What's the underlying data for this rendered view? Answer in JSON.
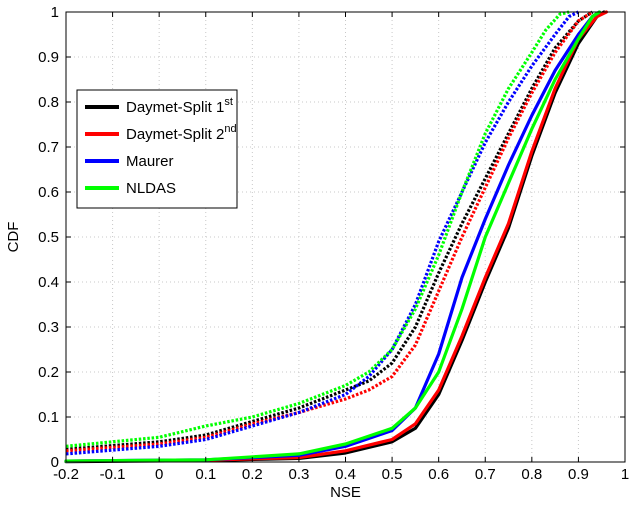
{
  "chart_data": {
    "type": "line",
    "title": "",
    "xlabel": "NSE",
    "ylabel": "CDF",
    "xlim": [
      -0.2,
      1
    ],
    "ylim": [
      0,
      1
    ],
    "xticks": [
      "-0.2",
      "-0.1",
      "0",
      "0.1",
      "0.2",
      "0.3",
      "0.4",
      "0.5",
      "0.6",
      "0.7",
      "0.8",
      "0.9",
      "1"
    ],
    "yticks": [
      "0",
      "0.1",
      "0.2",
      "0.3",
      "0.4",
      "0.5",
      "0.6",
      "0.7",
      "0.8",
      "0.9",
      "1"
    ],
    "grid": true,
    "legend_position": "upper-left",
    "legend": [
      {
        "label": "Daymet-Split 1",
        "sup": "st",
        "color": "#000000"
      },
      {
        "label": "Daymet-Split 2",
        "sup": "nd",
        "color": "#ff0000"
      },
      {
        "label": "Maurer",
        "sup": "",
        "color": "#0000ff"
      },
      {
        "label": "NLDAS",
        "sup": "",
        "color": "#00ff00"
      }
    ],
    "series": [
      {
        "group": "solid",
        "color": "#000000",
        "style": "solid",
        "points": [
          [
            -0.2,
            0.001
          ],
          [
            0.1,
            0.003
          ],
          [
            0.3,
            0.008
          ],
          [
            0.4,
            0.02
          ],
          [
            0.5,
            0.045
          ],
          [
            0.55,
            0.075
          ],
          [
            0.6,
            0.15
          ],
          [
            0.65,
            0.27
          ],
          [
            0.7,
            0.4
          ],
          [
            0.75,
            0.52
          ],
          [
            0.8,
            0.68
          ],
          [
            0.85,
            0.82
          ],
          [
            0.9,
            0.93
          ],
          [
            0.94,
            0.99
          ],
          [
            0.955,
            1.0
          ]
        ]
      },
      {
        "group": "solid",
        "color": "#ff0000",
        "style": "solid",
        "points": [
          [
            -0.2,
            0.002
          ],
          [
            0.1,
            0.004
          ],
          [
            0.3,
            0.01
          ],
          [
            0.4,
            0.025
          ],
          [
            0.5,
            0.05
          ],
          [
            0.55,
            0.085
          ],
          [
            0.6,
            0.16
          ],
          [
            0.65,
            0.28
          ],
          [
            0.7,
            0.41
          ],
          [
            0.75,
            0.53
          ],
          [
            0.8,
            0.69
          ],
          [
            0.85,
            0.83
          ],
          [
            0.9,
            0.94
          ],
          [
            0.94,
            0.99
          ],
          [
            0.96,
            1.0
          ]
        ]
      },
      {
        "group": "solid",
        "color": "#0000ff",
        "style": "solid",
        "points": [
          [
            -0.2,
            0.002
          ],
          [
            0.1,
            0.005
          ],
          [
            0.3,
            0.015
          ],
          [
            0.4,
            0.035
          ],
          [
            0.5,
            0.07
          ],
          [
            0.55,
            0.12
          ],
          [
            0.6,
            0.24
          ],
          [
            0.65,
            0.41
          ],
          [
            0.7,
            0.54
          ],
          [
            0.75,
            0.66
          ],
          [
            0.8,
            0.77
          ],
          [
            0.85,
            0.87
          ],
          [
            0.9,
            0.95
          ],
          [
            0.93,
            0.99
          ],
          [
            0.945,
            1.0
          ]
        ]
      },
      {
        "group": "solid",
        "color": "#00ff00",
        "style": "solid",
        "points": [
          [
            -0.2,
            0.002
          ],
          [
            0.1,
            0.005
          ],
          [
            0.3,
            0.018
          ],
          [
            0.4,
            0.04
          ],
          [
            0.5,
            0.075
          ],
          [
            0.55,
            0.12
          ],
          [
            0.6,
            0.2
          ],
          [
            0.65,
            0.34
          ],
          [
            0.7,
            0.5
          ],
          [
            0.75,
            0.62
          ],
          [
            0.8,
            0.74
          ],
          [
            0.85,
            0.85
          ],
          [
            0.9,
            0.94
          ],
          [
            0.93,
            0.99
          ],
          [
            0.945,
            1.0
          ]
        ]
      },
      {
        "group": "dotted",
        "color": "#000000",
        "style": "dotted",
        "points": [
          [
            -0.2,
            0.028
          ],
          [
            0.0,
            0.045
          ],
          [
            0.1,
            0.06
          ],
          [
            0.2,
            0.09
          ],
          [
            0.3,
            0.12
          ],
          [
            0.4,
            0.16
          ],
          [
            0.45,
            0.18
          ],
          [
            0.5,
            0.22
          ],
          [
            0.55,
            0.3
          ],
          [
            0.6,
            0.42
          ],
          [
            0.65,
            0.53
          ],
          [
            0.7,
            0.63
          ],
          [
            0.75,
            0.73
          ],
          [
            0.8,
            0.83
          ],
          [
            0.85,
            0.92
          ],
          [
            0.9,
            0.98
          ],
          [
            0.93,
            1.0
          ]
        ]
      },
      {
        "group": "dotted",
        "color": "#ff0000",
        "style": "dotted",
        "points": [
          [
            -0.2,
            0.025
          ],
          [
            0.0,
            0.04
          ],
          [
            0.1,
            0.055
          ],
          [
            0.2,
            0.085
          ],
          [
            0.3,
            0.11
          ],
          [
            0.4,
            0.14
          ],
          [
            0.45,
            0.16
          ],
          [
            0.5,
            0.19
          ],
          [
            0.55,
            0.26
          ],
          [
            0.6,
            0.38
          ],
          [
            0.65,
            0.5
          ],
          [
            0.7,
            0.61
          ],
          [
            0.75,
            0.72
          ],
          [
            0.8,
            0.82
          ],
          [
            0.85,
            0.91
          ],
          [
            0.9,
            0.98
          ],
          [
            0.93,
            1.0
          ]
        ]
      },
      {
        "group": "dotted",
        "color": "#0000ff",
        "style": "dotted",
        "points": [
          [
            -0.2,
            0.018
          ],
          [
            0.0,
            0.035
          ],
          [
            0.1,
            0.05
          ],
          [
            0.2,
            0.08
          ],
          [
            0.3,
            0.11
          ],
          [
            0.4,
            0.15
          ],
          [
            0.45,
            0.19
          ],
          [
            0.5,
            0.25
          ],
          [
            0.55,
            0.35
          ],
          [
            0.6,
            0.49
          ],
          [
            0.65,
            0.6
          ],
          [
            0.7,
            0.71
          ],
          [
            0.75,
            0.8
          ],
          [
            0.8,
            0.88
          ],
          [
            0.85,
            0.95
          ],
          [
            0.88,
            0.99
          ],
          [
            0.9,
            1.0
          ]
        ]
      },
      {
        "group": "dotted",
        "color": "#00ff00",
        "style": "dotted",
        "points": [
          [
            -0.2,
            0.035
          ],
          [
            0.0,
            0.055
          ],
          [
            0.1,
            0.08
          ],
          [
            0.2,
            0.1
          ],
          [
            0.3,
            0.13
          ],
          [
            0.4,
            0.17
          ],
          [
            0.45,
            0.2
          ],
          [
            0.5,
            0.25
          ],
          [
            0.55,
            0.34
          ],
          [
            0.6,
            0.46
          ],
          [
            0.65,
            0.6
          ],
          [
            0.7,
            0.73
          ],
          [
            0.75,
            0.83
          ],
          [
            0.8,
            0.91
          ],
          [
            0.83,
            0.96
          ],
          [
            0.86,
            0.995
          ],
          [
            0.88,
            1.0
          ]
        ]
      }
    ]
  }
}
